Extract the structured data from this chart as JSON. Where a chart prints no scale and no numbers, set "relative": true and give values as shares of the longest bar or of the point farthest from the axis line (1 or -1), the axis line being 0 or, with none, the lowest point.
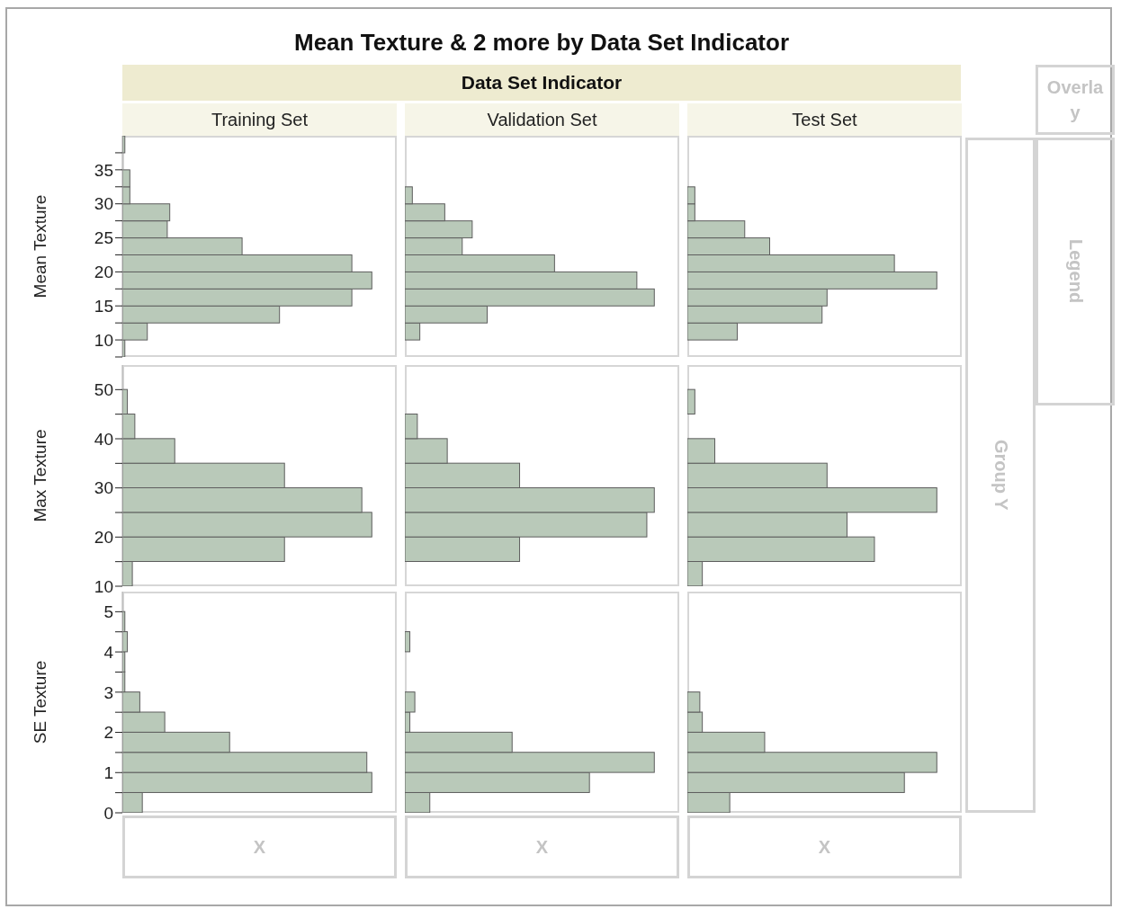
{
  "chart_data": [
    {
      "type": "bar",
      "orientation": "horizontal",
      "relative": true,
      "title": "Training Set",
      "ylabel": "Mean Texture",
      "color": "#b9c9b9",
      "x": [
        8.75,
        11.25,
        13.75,
        16.25,
        18.75,
        21.25,
        23.75,
        26.25,
        28.75,
        31.25,
        33.75,
        36.25,
        38.75
      ],
      "values": [
        0.01,
        0.1,
        0.63,
        0.92,
        1,
        0.92,
        0.48,
        0.18,
        0.19,
        0.03,
        0.03,
        0,
        0.01
      ],
      "ylim": [
        7.5,
        40
      ],
      "yticks": [
        {
          "value": 7.5,
          "label": null
        },
        10,
        {
          "value": 12.5,
          "label": null
        },
        15,
        {
          "value": 17.5,
          "label": null
        },
        20,
        {
          "value": 22.5,
          "label": null
        },
        25,
        {
          "value": 27.5,
          "label": null
        },
        30,
        {
          "value": 32.5,
          "label": null
        },
        35,
        {
          "value": 37.5,
          "label": null
        }
      ],
      "tick_labels": "y"
    },
    {
      "type": "bar",
      "orientation": "horizontal",
      "relative": true,
      "title": "Validation Set",
      "color": "#b9c9b9",
      "x": [
        8.75,
        11.25,
        13.75,
        16.25,
        18.75,
        21.25,
        23.75,
        26.25,
        28.75,
        31.25,
        33.75,
        36.25,
        38.75
      ],
      "values": [
        0,
        0.06,
        0.33,
        1,
        0.93,
        0.6,
        0.23,
        0.27,
        0.16,
        0.03,
        0,
        0,
        0
      ],
      "ylim": [
        7.5,
        40
      ],
      "tick_labels": false
    },
    {
      "type": "bar",
      "orientation": "horizontal",
      "relative": true,
      "title": "Test Set",
      "color": "#b9c9b9",
      "x": [
        8.75,
        11.25,
        13.75,
        16.25,
        18.75,
        21.25,
        23.75,
        26.25,
        28.75,
        31.25,
        33.75,
        36.25,
        38.75
      ],
      "values": [
        0,
        0.2,
        0.54,
        0.56,
        1,
        0.83,
        0.33,
        0.23,
        0.03,
        0.03,
        0,
        0,
        0
      ],
      "ylim": [
        7.5,
        40
      ],
      "tick_labels": false
    },
    {
      "type": "bar",
      "orientation": "horizontal",
      "relative": true,
      "ylabel": "Max Texture",
      "color": "#b9c9b9",
      "x": [
        12.5,
        17.5,
        22.5,
        27.5,
        32.5,
        37.5,
        42.5,
        47.5
      ],
      "values": [
        0.04,
        0.65,
        1,
        0.96,
        0.65,
        0.21,
        0.05,
        0.02
      ],
      "ylim": [
        10,
        55
      ],
      "yticks": [
        10,
        {
          "value": 15,
          "label": null
        },
        20,
        {
          "value": 25,
          "label": null
        },
        30,
        {
          "value": 35,
          "label": null
        },
        40,
        {
          "value": 45,
          "label": null
        },
        50
      ],
      "tick_labels": "y"
    },
    {
      "type": "bar",
      "orientation": "horizontal",
      "relative": true,
      "color": "#b9c9b9",
      "x": [
        12.5,
        17.5,
        22.5,
        27.5,
        32.5,
        37.5,
        42.5,
        47.5
      ],
      "values": [
        0,
        0.46,
        0.97,
        1,
        0.46,
        0.17,
        0.05,
        0
      ],
      "ylim": [
        10,
        55
      ],
      "tick_labels": false
    },
    {
      "type": "bar",
      "orientation": "horizontal",
      "relative": true,
      "color": "#b9c9b9",
      "x": [
        12.5,
        17.5,
        22.5,
        27.5,
        32.5,
        37.5,
        42.5,
        47.5
      ],
      "values": [
        0.06,
        0.75,
        0.64,
        1,
        0.56,
        0.11,
        0,
        0.03
      ],
      "ylim": [
        10,
        55
      ],
      "tick_labels": false
    },
    {
      "type": "bar",
      "orientation": "horizontal",
      "relative": true,
      "ylabel": "SE Texture",
      "color": "#b9c9b9",
      "x": [
        0.25,
        0.75,
        1.25,
        1.75,
        2.25,
        2.75,
        3.25,
        3.75,
        4.25,
        4.75
      ],
      "values": [
        0.08,
        1,
        0.98,
        0.43,
        0.17,
        0.07,
        0.01,
        0.01,
        0.02,
        0.01
      ],
      "ylim": [
        0,
        5.5
      ],
      "yticks": [
        0,
        {
          "value": 0.5,
          "label": null
        },
        1,
        {
          "value": 1.5,
          "label": null
        },
        2,
        {
          "value": 2.5,
          "label": null
        },
        3,
        {
          "value": 3.5,
          "label": null
        },
        4,
        {
          "value": 4.5,
          "label": null
        },
        5
      ],
      "tick_labels": "y"
    },
    {
      "type": "bar",
      "orientation": "horizontal",
      "relative": true,
      "color": "#b9c9b9",
      "x": [
        0.25,
        0.75,
        1.25,
        1.75,
        2.25,
        2.75,
        3.25,
        3.75,
        4.25,
        4.75
      ],
      "values": [
        0.1,
        0.74,
        1,
        0.43,
        0.02,
        0.04,
        0,
        0,
        0.02,
        0
      ],
      "ylim": [
        0,
        5.5
      ],
      "tick_labels": false
    },
    {
      "type": "bar",
      "orientation": "horizontal",
      "relative": true,
      "color": "#b9c9b9",
      "x": [
        0.25,
        0.75,
        1.25,
        1.75,
        2.25,
        2.75,
        3.25,
        3.75,
        4.25,
        4.75
      ],
      "values": [
        0.17,
        0.87,
        1,
        0.31,
        0.06,
        0.05,
        0,
        0,
        0,
        0
      ],
      "ylim": [
        0,
        5.5
      ],
      "tick_labels": false
    },
    {
      "type": "other",
      "title": "Mean Texture & 2 more by Data Set Indicator",
      "subtitle": "Data Set Indicator",
      "annotations": [
        "Overlay",
        "Legend",
        "Group Y",
        "X",
        "X",
        "X"
      ]
    }
  ]
}
